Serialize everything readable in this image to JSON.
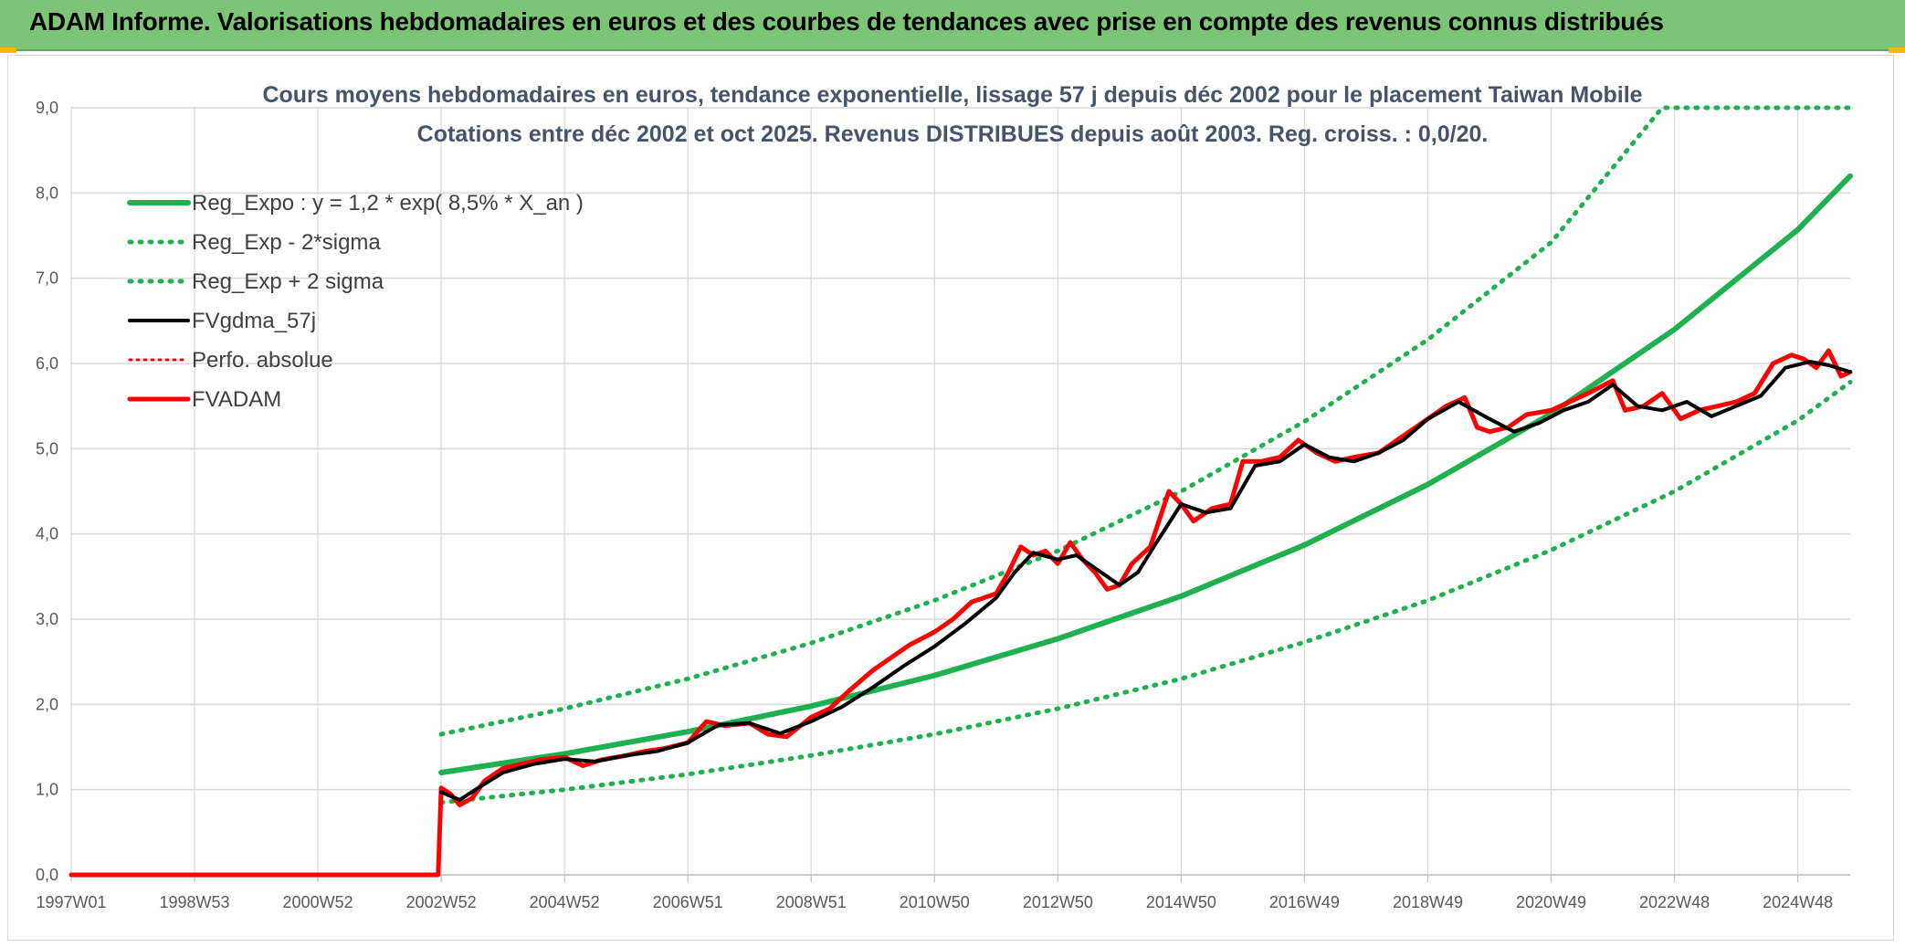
{
  "header": {
    "title": "ADAM Informe. Valorisations hebdomadaires en euros et des courbes de tendances avec prise en compte des revenus connus distribués"
  },
  "colors": {
    "header_bg": "#7cc576",
    "reg_expo": "#1fb050",
    "sigma": "#1fb050",
    "fvgdma": "#000000",
    "perfo": "#ff0000",
    "fvadam": "#ff0000",
    "grid": "#d9d9d9"
  },
  "chart_data": {
    "type": "line",
    "title": "Cours moyens hebdomadaires en euros, tendance exponentielle, lissage 57 j depuis déc 2002 pour le placement Taiwan Mobile",
    "subtitle": "Cotations entre déc 2002 et oct 2025. Revenus DISTRIBUES depuis août 2003. Reg. croiss. : 0,0/20.",
    "xlabel": "",
    "ylabel": "",
    "ylim": [
      0,
      9
    ],
    "yticks": [
      "0,0",
      "1,0",
      "2,0",
      "3,0",
      "4,0",
      "5,0",
      "6,0",
      "7,0",
      "8,0",
      "9,0"
    ],
    "xlim": [
      1997.0,
      2025.85
    ],
    "xtick_labels": [
      "1997W01",
      "1998W53",
      "2000W52",
      "2002W52",
      "2004W52",
      "2006W51",
      "2008W51",
      "2010W50",
      "2012W50",
      "2014W50",
      "2016W49",
      "2018W49",
      "2020W49",
      "2022W48",
      "2024W48"
    ],
    "xtick_positions": [
      1997.0,
      1999.0,
      2001.0,
      2003.0,
      2005.0,
      2007.0,
      2009.0,
      2011.0,
      2013.0,
      2015.0,
      2017.0,
      2019.0,
      2021.0,
      2023.0,
      2025.0
    ],
    "grid": true,
    "legend_position": "top-left",
    "legend": [
      "Reg_Expo : y = 1,2 * exp( 8,5% *  X_an )",
      "Reg_Exp - 2*sigma",
      "Reg_Exp + 2 sigma",
      "FVgdma_57j",
      "Perfo. absolue",
      "FVADAM"
    ],
    "series": [
      {
        "name": "Reg_Expo : y = 1,2 * exp( 8,5% *  X_an )",
        "style": "solid-thick",
        "x": [
          2003.0,
          2005.0,
          2007.0,
          2009.0,
          2011.0,
          2013.0,
          2015.0,
          2017.0,
          2019.0,
          2021.0,
          2023.0,
          2025.0,
          2025.85
        ],
        "values": [
          1.2,
          1.42,
          1.68,
          1.98,
          2.34,
          2.77,
          3.27,
          3.87,
          4.58,
          5.41,
          6.4,
          7.57,
          8.2
        ]
      },
      {
        "name": "Reg_Exp - 2*sigma",
        "style": "dotted",
        "x": [
          2003.0,
          2005.0,
          2007.0,
          2009.0,
          2011.0,
          2013.0,
          2015.0,
          2017.0,
          2019.0,
          2021.0,
          2023.0,
          2025.0,
          2025.85
        ],
        "values": [
          0.85,
          1.0,
          1.18,
          1.4,
          1.65,
          1.95,
          2.3,
          2.73,
          3.22,
          3.81,
          4.5,
          5.33,
          5.78
        ]
      },
      {
        "name": "Reg_Exp + 2 sigma",
        "style": "dotted",
        "x": [
          2003.0,
          2005.0,
          2007.0,
          2009.0,
          2011.0,
          2013.0,
          2015.0,
          2017.0,
          2019.0,
          2021.0,
          2022.8,
          2023.0,
          2025.85
        ],
        "values": [
          1.65,
          1.95,
          2.3,
          2.72,
          3.22,
          3.8,
          4.5,
          5.32,
          6.28,
          7.42,
          9.0,
          9.0,
          9.0
        ]
      },
      {
        "name": "FVgdma_57j",
        "style": "solid-thin",
        "x": [
          2003.0,
          2003.3,
          2003.6,
          2004.0,
          2004.5,
          2005.0,
          2005.5,
          2006.0,
          2006.5,
          2007.0,
          2007.5,
          2008.0,
          2008.5,
          2009.0,
          2009.5,
          2010.0,
          2010.5,
          2011.0,
          2011.5,
          2012.0,
          2012.3,
          2012.6,
          2013.0,
          2013.3,
          2013.6,
          2014.0,
          2014.3,
          2014.6,
          2015.0,
          2015.4,
          2015.8,
          2016.2,
          2016.6,
          2017.0,
          2017.4,
          2017.8,
          2018.2,
          2018.6,
          2019.0,
          2019.5,
          2020.0,
          2020.4,
          2020.8,
          2021.2,
          2021.6,
          2022.0,
          2022.4,
          2022.8,
          2023.2,
          2023.6,
          2024.0,
          2024.4,
          2024.8,
          2025.2,
          2025.5,
          2025.85
        ],
        "values": [
          0.97,
          0.88,
          1.02,
          1.2,
          1.3,
          1.36,
          1.33,
          1.4,
          1.45,
          1.55,
          1.76,
          1.78,
          1.66,
          1.8,
          1.97,
          2.2,
          2.45,
          2.68,
          2.95,
          3.25,
          3.55,
          3.78,
          3.7,
          3.75,
          3.6,
          3.4,
          3.55,
          3.9,
          4.35,
          4.25,
          4.3,
          4.8,
          4.85,
          5.05,
          4.9,
          4.85,
          4.95,
          5.1,
          5.35,
          5.55,
          5.35,
          5.2,
          5.3,
          5.45,
          5.55,
          5.75,
          5.5,
          5.45,
          5.55,
          5.38,
          5.5,
          5.62,
          5.95,
          6.02,
          5.98,
          5.9
        ]
      },
      {
        "name": "Perfo. absolue",
        "style": "dotted",
        "x": [],
        "values": []
      },
      {
        "name": "FVADAM",
        "style": "solid-thick",
        "x": [
          1997.0,
          2002.95,
          2003.0,
          2003.15,
          2003.3,
          2003.5,
          2003.7,
          2004.0,
          2004.3,
          2004.6,
          2005.0,
          2005.3,
          2005.6,
          2006.0,
          2006.3,
          2006.6,
          2007.0,
          2007.3,
          2007.6,
          2008.0,
          2008.3,
          2008.6,
          2009.0,
          2009.3,
          2009.6,
          2010.0,
          2010.3,
          2010.6,
          2011.0,
          2011.3,
          2011.6,
          2012.0,
          2012.2,
          2012.4,
          2012.6,
          2012.8,
          2013.0,
          2013.2,
          2013.4,
          2013.6,
          2013.8,
          2014.0,
          2014.2,
          2014.5,
          2014.8,
          2015.0,
          2015.2,
          2015.5,
          2015.8,
          2016.0,
          2016.3,
          2016.6,
          2016.9,
          2017.2,
          2017.5,
          2017.8,
          2018.2,
          2018.6,
          2019.0,
          2019.3,
          2019.6,
          2019.8,
          2020.0,
          2020.3,
          2020.6,
          2021.0,
          2021.3,
          2021.6,
          2022.0,
          2022.2,
          2022.5,
          2022.8,
          2023.1,
          2023.4,
          2023.7,
          2024.0,
          2024.3,
          2024.6,
          2024.9,
          2025.1,
          2025.3,
          2025.5,
          2025.7,
          2025.85
        ],
        "values": [
          0.0,
          0.0,
          1.02,
          0.95,
          0.82,
          0.9,
          1.1,
          1.25,
          1.3,
          1.35,
          1.38,
          1.28,
          1.35,
          1.4,
          1.45,
          1.48,
          1.55,
          1.8,
          1.75,
          1.78,
          1.65,
          1.62,
          1.85,
          1.95,
          2.15,
          2.4,
          2.55,
          2.7,
          2.85,
          3.0,
          3.2,
          3.3,
          3.55,
          3.85,
          3.75,
          3.8,
          3.65,
          3.9,
          3.7,
          3.55,
          3.35,
          3.4,
          3.65,
          3.85,
          4.5,
          4.35,
          4.15,
          4.3,
          4.35,
          4.85,
          4.85,
          4.9,
          5.1,
          4.95,
          4.85,
          4.9,
          4.95,
          5.15,
          5.35,
          5.5,
          5.6,
          5.25,
          5.2,
          5.25,
          5.4,
          5.45,
          5.55,
          5.65,
          5.8,
          5.45,
          5.5,
          5.65,
          5.35,
          5.45,
          5.5,
          5.55,
          5.65,
          6.0,
          6.1,
          6.05,
          5.95,
          6.15,
          5.85,
          5.9
        ]
      }
    ]
  }
}
